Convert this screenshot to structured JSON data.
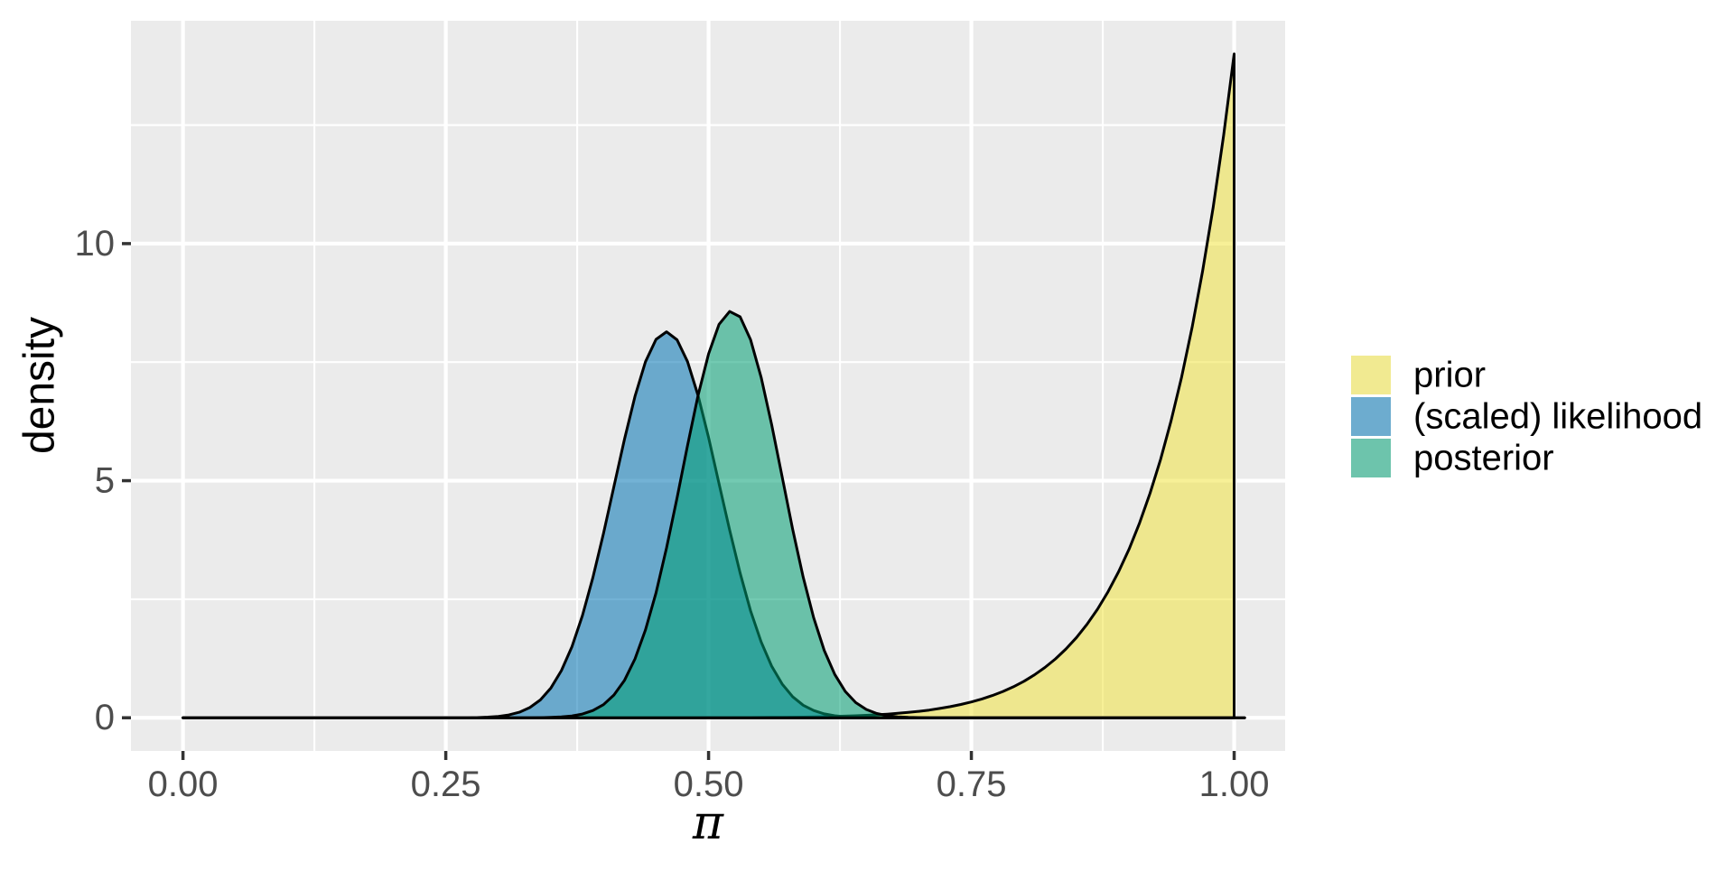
{
  "chart_data": {
    "type": "area",
    "title": "",
    "xlabel": "π",
    "ylabel": "density",
    "x_start": 0,
    "x_step": 0.01,
    "xlim": [
      -0.0495,
      1.0485
    ],
    "ylim": [
      -0.7,
      14.7
    ],
    "x_ticks": [
      0,
      0.25,
      0.5,
      0.75,
      1.0
    ],
    "x_tick_labels": [
      "0.00",
      "0.25",
      "0.50",
      "0.75",
      "1.00"
    ],
    "y_ticks": [
      0,
      5,
      10
    ],
    "y_tick_labels": [
      "0",
      "5",
      "10"
    ],
    "x_minor": [
      0.125,
      0.375,
      0.625,
      0.875
    ],
    "y_minor": [
      2.5,
      7.5,
      12.5
    ],
    "grid": true,
    "legend_position": "right",
    "fill_alpha": 0.55,
    "stroke_color": "#000000",
    "panel_bg": "#EBEBEB",
    "grid_color": "#FFFFFF",
    "tick_color": "#333333",
    "tick_label_color": "#4D4D4D",
    "series": [
      {
        "name": "prior",
        "color": "#F0E442",
        "distribution": "Beta(14,1)",
        "values": [
          0,
          0,
          0,
          0,
          0,
          0,
          0,
          0,
          0,
          0,
          0,
          0,
          0,
          0,
          0,
          0,
          0,
          0,
          0,
          0,
          0,
          0,
          0,
          0,
          0,
          0,
          0,
          0,
          0,
          0,
          0,
          0,
          0,
          0,
          0,
          0,
          0,
          0,
          0,
          0,
          0,
          0,
          0,
          0,
          0.0003,
          0.0004,
          0.0006,
          0.0008,
          0.001,
          0.0013,
          0.0017,
          0.0022,
          0.0028,
          0.0037,
          0.0047,
          0.0059,
          0.0075,
          0.0094,
          0.0118,
          0.0147,
          0.0182,
          0.0226,
          0.028,
          0.0345,
          0.0422,
          0.0517,
          0.063,
          0.0767,
          0.093,
          0.1124,
          0.1355,
          0.1632,
          0.1957,
          0.2342,
          0.2794,
          0.3327,
          0.3956,
          0.4684,
          0.554,
          0.6538,
          0.77,
          0.9045,
          1.0609,
          1.2421,
          1.4504,
          1.6925,
          1.9713,
          2.2894,
          2.6585,
          3.0772,
          3.5565,
          4.109,
          4.735,
          5.4497,
          6.2636,
          7.188,
          8.2354,
          9.4219,
          10.766,
          12.284,
          14.0
        ]
      },
      {
        "name": "(scaled) likelihood",
        "color": "#0072B2",
        "distribution": "Beta(47,55)",
        "values": [
          0,
          0,
          0,
          0,
          0,
          0,
          0,
          0,
          0,
          0,
          0,
          0,
          0,
          0,
          0,
          0,
          0,
          0,
          0,
          0,
          0,
          0,
          0,
          0,
          0,
          0,
          0,
          0,
          0.005,
          0.013,
          0.029,
          0.06,
          0.117,
          0.216,
          0.378,
          0.629,
          0.995,
          1.499,
          2.156,
          2.959,
          3.885,
          4.879,
          5.877,
          6.78,
          7.509,
          7.98,
          8.14,
          7.97,
          7.51,
          6.8,
          5.91,
          4.933,
          3.96,
          3.053,
          2.255,
          1.6,
          1.09,
          0.711,
          0.444,
          0.266,
          0.152,
          0.083,
          0.043,
          0.021,
          0.01,
          0.005,
          0.002,
          0.001,
          0,
          0,
          0,
          0,
          0,
          0,
          0,
          0,
          0,
          0,
          0,
          0,
          0,
          0,
          0,
          0,
          0,
          0,
          0,
          0,
          0,
          0,
          0,
          0,
          0,
          0,
          0,
          0,
          0,
          0,
          0,
          0,
          0,
          0
        ]
      },
      {
        "name": "posterior",
        "color": "#009E73",
        "distribution": "Beta(60,55)",
        "values": [
          0,
          0,
          0,
          0,
          0,
          0,
          0,
          0,
          0,
          0,
          0,
          0,
          0,
          0,
          0,
          0,
          0,
          0,
          0,
          0,
          0,
          0,
          0,
          0,
          0,
          0,
          0,
          0,
          0,
          0,
          0,
          0,
          0,
          0,
          0.003,
          0.008,
          0.018,
          0.039,
          0.079,
          0.152,
          0.277,
          0.481,
          0.791,
          1.241,
          1.852,
          2.635,
          3.58,
          4.637,
          5.743,
          6.794,
          7.675,
          8.298,
          8.568,
          8.457,
          7.973,
          7.178,
          6.185,
          5.078,
          3.975,
          2.968,
          2.106,
          1.423,
          0.915,
          0.557,
          0.321,
          0.175,
          0.09,
          0.044,
          0.02,
          0.009,
          0.004,
          0,
          0,
          0,
          0,
          0,
          0,
          0,
          0,
          0,
          0,
          0,
          0,
          0,
          0,
          0,
          0,
          0,
          0,
          0,
          0,
          0,
          0,
          0,
          0,
          0,
          0,
          0,
          0,
          0,
          0,
          0
        ]
      }
    ]
  },
  "legend": {
    "key_bg": "#F2F2F2",
    "items": [
      {
        "label": "prior",
        "color": "#F0E442"
      },
      {
        "label": "(scaled) likelihood",
        "color": "#0072B2"
      },
      {
        "label": "posterior",
        "color": "#009E73"
      }
    ]
  }
}
